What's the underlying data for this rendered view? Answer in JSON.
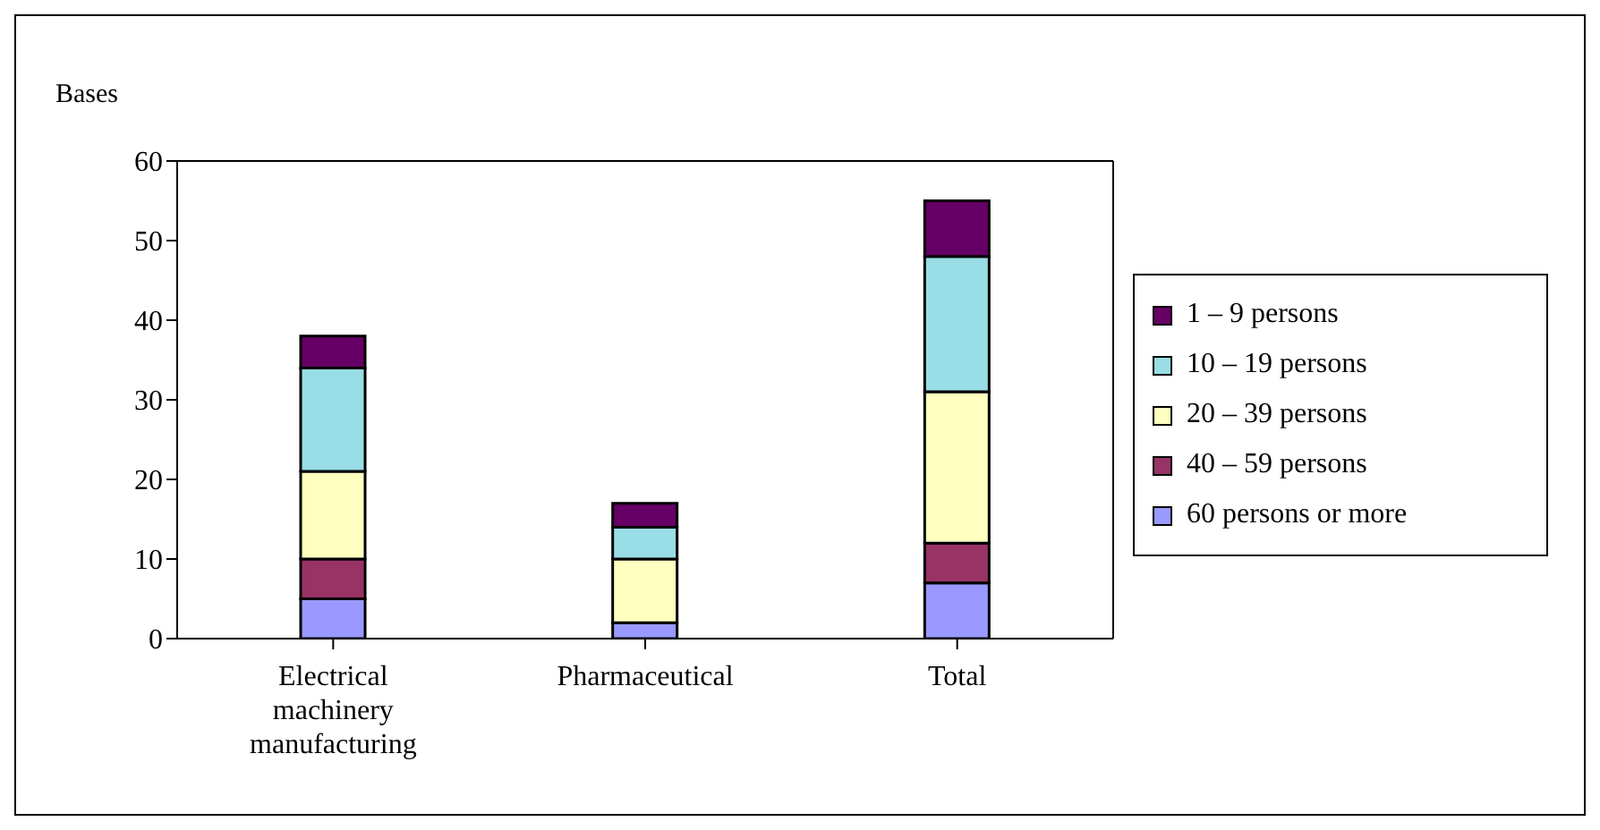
{
  "chart_data": {
    "type": "bar",
    "stacked": true,
    "ylabel": "Bases",
    "categories": [
      "Electrical machinery manufacturing",
      "Pharmaceutical",
      "Total"
    ],
    "series": [
      {
        "name": "60 persons or more",
        "color": "#9999ff",
        "values": [
          5,
          2,
          7
        ]
      },
      {
        "name": "40 – 59 persons",
        "color": "#993366",
        "values": [
          5,
          0,
          5
        ]
      },
      {
        "name": "20 – 39 persons",
        "color": "#ffffc0",
        "values": [
          11,
          8,
          19
        ]
      },
      {
        "name": "10 – 19 persons",
        "color": "#99dde6",
        "values": [
          13,
          4,
          17
        ]
      },
      {
        "name": "1 – 9 persons",
        "color": "#660066",
        "values": [
          4,
          3,
          7
        ]
      }
    ],
    "ylim": [
      0,
      60
    ],
    "yticks": [
      0,
      10,
      20,
      30,
      40,
      50,
      60
    ],
    "grid": false,
    "legend": "right"
  }
}
